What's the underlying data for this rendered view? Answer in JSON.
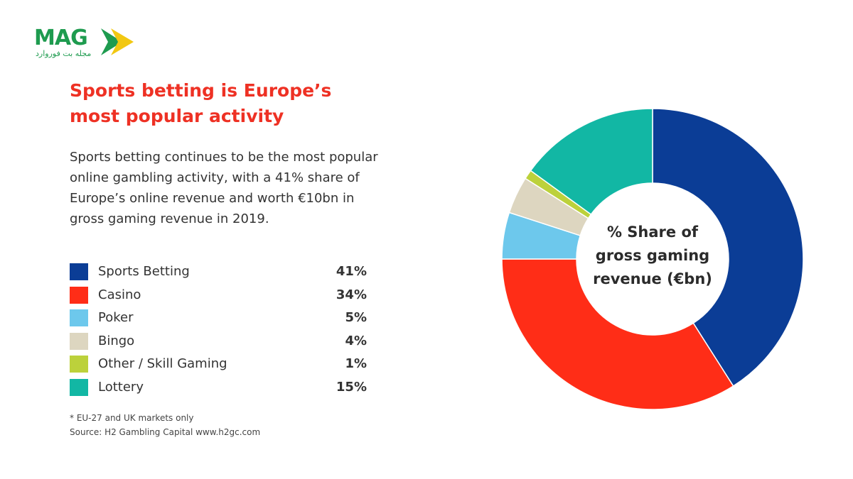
{
  "brand": {
    "logo_text": "MAG",
    "logo_subtitle": "مجله بت فوروارد",
    "colors": {
      "green": "#1e9b4f",
      "yellow": "#f2c811"
    }
  },
  "headline": "Sports betting is Europe’s most popular activity",
  "intro": "Sports betting continues to be the most popular online gambling activity, with a 41% share of Europe’s online revenue and worth €10bn in gross gaming revenue in 2019.",
  "footnote": "* EU-27 and UK markets only",
  "source": "Source: H2 Gambling Capital www.h2gc.com",
  "chart_data": {
    "type": "pie",
    "title": "% Share of gross gaming revenue (€bn)",
    "title_lines": [
      "% Share of",
      "gross gaming",
      "revenue (€bn)"
    ],
    "categories": [
      "Sports Betting",
      "Casino",
      "Poker",
      "Bingo",
      "Other / Skill Gaming",
      "Lottery"
    ],
    "values": [
      41,
      34,
      5,
      4,
      1,
      15
    ],
    "value_labels": [
      "41%",
      "34%",
      "5%",
      "4%",
      "1%",
      "15%"
    ],
    "colors": [
      "#0b3d96",
      "#ff2d17",
      "#6dc8ec",
      "#ddd6c0",
      "#bcd13b",
      "#12b7a4"
    ],
    "donut": true,
    "start": "top",
    "direction": "clockwise",
    "legend_position": "left"
  }
}
